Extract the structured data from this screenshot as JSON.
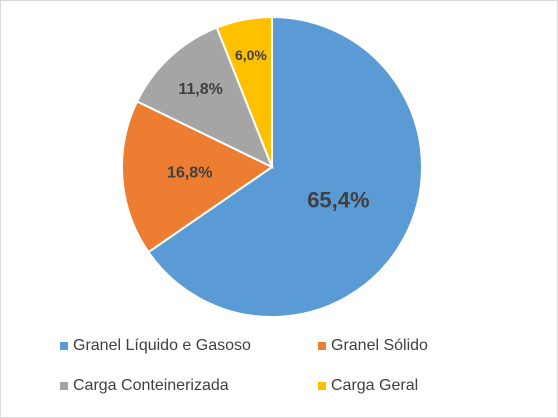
{
  "chart_data": {
    "type": "pie",
    "categories": [
      "Granel Líquido e Gasoso",
      "Granel Sólido",
      "Carga Conteinerizada",
      "Carga Geral"
    ],
    "values": [
      65.4,
      16.8,
      11.8,
      6.0
    ],
    "value_labels": [
      "65,4%",
      "16,8%",
      "11,8%",
      "6,0%"
    ],
    "colors": [
      "#5b9bd5",
      "#ed7d31",
      "#a5a5a5",
      "#ffc000"
    ],
    "legend": "bottom"
  }
}
